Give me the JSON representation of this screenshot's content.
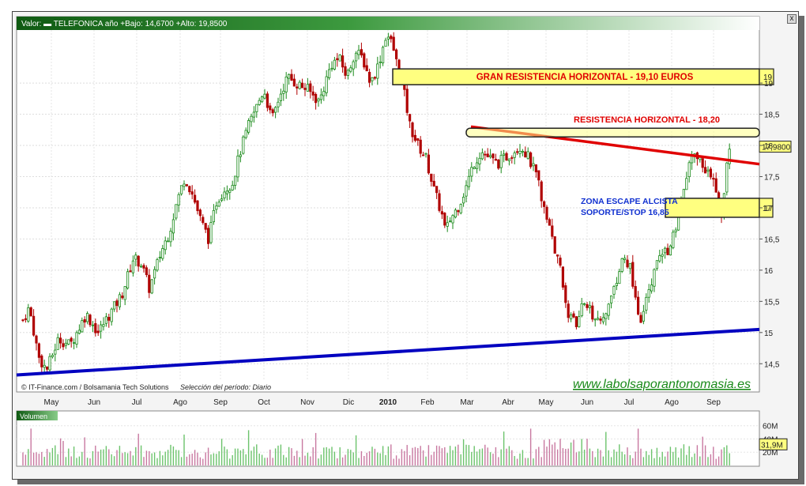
{
  "header": {
    "legend_line": "Valor:  ▬  TELEFONICA     año +Bajo: 14,6700 +Alto: 19,8500"
  },
  "footer": {
    "source": "© IT-Finance.com / Bolsamania Tech Solutions",
    "period": "Selección del período: Diario",
    "website": "www.labolsaporantonomasia.es"
  },
  "close_label": "x",
  "colors": {
    "up_candle": "#1a8a1a",
    "down_candle": "#b00000",
    "resistance_line": "#e00000",
    "support_line": "#0000c0",
    "highlight_box": "#ffff80",
    "volume_up": "#6cc36c",
    "volume_down": "#c878a0"
  },
  "chart_data": [
    {
      "type": "candlestick",
      "title": "TELEFONICA",
      "ylim": [
        14.25,
        19.85
      ],
      "grid": true,
      "x_axis_labels": [
        "May",
        "Jun",
        "Jul",
        "Ago",
        "Sep",
        "Oct",
        "Nov",
        "Dic",
        "2010",
        "Feb",
        "Mar",
        "Abr",
        "May",
        "Jun",
        "Jul",
        "Ago",
        "Sep"
      ],
      "y_ticks": [
        "14,5",
        "15",
        "15,5",
        "16",
        "16,5",
        "17",
        "17,5",
        "18",
        "18,5",
        "19"
      ],
      "y_tick_values": [
        14.5,
        15,
        15.5,
        16,
        16.5,
        17,
        17.5,
        18,
        18.5,
        19
      ],
      "last_price_label": "17,9800",
      "last_price": 17.98,
      "series": [
        {
          "name": "TELEFONICA",
          "close_path": [
            [
              0,
              15.2
            ],
            [
              8,
              15.4
            ],
            [
              20,
              14.6
            ],
            [
              30,
              14.4
            ],
            [
              45,
              14.9
            ],
            [
              60,
              14.8
            ],
            [
              80,
              15.3
            ],
            [
              95,
              15.0
            ],
            [
              110,
              15.3
            ],
            [
              125,
              15.6
            ],
            [
              140,
              16.2
            ],
            [
              150,
              16.1
            ],
            [
              160,
              15.7
            ],
            [
              175,
              16.3
            ],
            [
              185,
              16.6
            ],
            [
              195,
              17.1
            ],
            [
              205,
              17.5
            ],
            [
              215,
              17.2
            ],
            [
              225,
              16.8
            ],
            [
              235,
              16.5
            ],
            [
              245,
              17.1
            ],
            [
              255,
              17.3
            ],
            [
              265,
              17.4
            ],
            [
              275,
              17.9
            ],
            [
              285,
              18.3
            ],
            [
              295,
              18.6
            ],
            [
              305,
              18.9
            ],
            [
              315,
              18.4
            ],
            [
              325,
              18.8
            ],
            [
              335,
              19.1
            ],
            [
              345,
              19.0
            ],
            [
              360,
              18.9
            ],
            [
              375,
              18.7
            ],
            [
              390,
              19.3
            ],
            [
              400,
              19.4
            ],
            [
              410,
              19.1
            ],
            [
              420,
              19.5
            ],
            [
              430,
              19.4
            ],
            [
              440,
              19.0
            ],
            [
              450,
              19.3
            ],
            [
              460,
              19.8
            ],
            [
              468,
              19.6
            ],
            [
              475,
              19.2
            ],
            [
              483,
              18.8
            ],
            [
              490,
              18.3
            ],
            [
              500,
              18.0
            ],
            [
              510,
              17.8
            ],
            [
              520,
              17.3
            ],
            [
              530,
              16.9
            ],
            [
              535,
              16.6
            ],
            [
              540,
              16.8
            ],
            [
              550,
              17.0
            ],
            [
              560,
              17.3
            ],
            [
              570,
              17.7
            ],
            [
              580,
              17.9
            ],
            [
              590,
              17.8
            ],
            [
              600,
              17.7
            ],
            [
              610,
              17.8
            ],
            [
              620,
              17.9
            ],
            [
              630,
              18.0
            ],
            [
              640,
              17.8
            ],
            [
              650,
              17.5
            ],
            [
              660,
              17.0
            ],
            [
              670,
              16.5
            ],
            [
              680,
              16.0
            ],
            [
              690,
              15.3
            ],
            [
              700,
              15.1
            ],
            [
              710,
              15.5
            ],
            [
              720,
              15.3
            ],
            [
              730,
              15.1
            ],
            [
              740,
              15.4
            ],
            [
              750,
              15.8
            ],
            [
              760,
              16.2
            ],
            [
              770,
              16.0
            ],
            [
              775,
              15.5
            ],
            [
              780,
              15.1
            ],
            [
              785,
              15.3
            ],
            [
              795,
              15.8
            ],
            [
              805,
              16.2
            ],
            [
              815,
              16.3
            ],
            [
              825,
              16.6
            ],
            [
              835,
              17.2
            ],
            [
              845,
              17.8
            ],
            [
              855,
              17.8
            ],
            [
              865,
              17.6
            ],
            [
              875,
              17.4
            ],
            [
              880,
              17.0
            ],
            [
              885,
              16.9
            ],
            [
              890,
              17.6
            ],
            [
              895,
              17.98
            ]
          ]
        }
      ],
      "annotations": [
        {
          "text": "GRAN RESISTENCIA HORIZONTAL  -  19,10   EUROS",
          "level": 19.1,
          "tag": "19"
        },
        {
          "text": "RESISTENCIA HORIZONTAL  -  18,20",
          "level": 18.2
        },
        {
          "text": "ZONA ESCAPE ALCISTA",
          "level": 17.0,
          "tag": "17"
        },
        {
          "text": "SOPORTE/STOP 16,85",
          "level": 16.85
        }
      ],
      "trendlines": [
        {
          "name": "resistance",
          "from": [
            560,
            18.3
          ],
          "to": [
            940,
            17.7
          ]
        },
        {
          "name": "support",
          "from": [
            0,
            14.32
          ],
          "to": [
            940,
            15.05
          ]
        }
      ]
    },
    {
      "type": "bar",
      "title": "Volumen",
      "y_ticks": [
        "20M",
        "40M",
        "60M"
      ],
      "y_tick_values": [
        20,
        40,
        60
      ],
      "ylim": [
        0,
        68
      ],
      "last_volume_label": "31,9M",
      "last_volume": 31.9
    }
  ]
}
